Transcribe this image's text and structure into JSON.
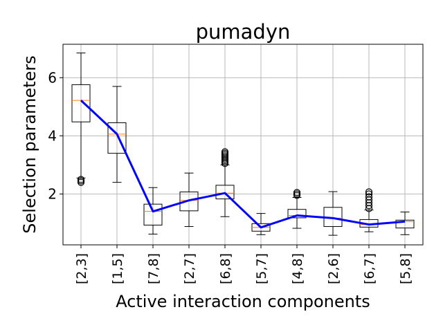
{
  "chart_data": {
    "type": "box",
    "title": "pumadyn",
    "xlabel": "Active interaction components",
    "ylabel": "Selection parameters",
    "ylim": [
      0.25,
      7.15
    ],
    "yticks": [
      2,
      4,
      6
    ],
    "grid": true,
    "categories": [
      "[2,3]",
      "[1,5]",
      "[7,8]",
      "[2,7]",
      "[6,8]",
      "[5,7]",
      "[4,8]",
      "[2,6]",
      "[6,7]",
      "[5,8]"
    ],
    "boxes": [
      {
        "whislo": 2.55,
        "q1": 4.48,
        "med": 5.22,
        "q3": 5.76,
        "whishi": 6.85,
        "fliers": [
          2.4,
          2.45,
          2.5
        ]
      },
      {
        "whislo": 2.4,
        "q1": 3.4,
        "med": 4.06,
        "q3": 4.45,
        "whishi": 5.7,
        "fliers": []
      },
      {
        "whislo": 0.62,
        "q1": 0.93,
        "med": 1.4,
        "q3": 1.65,
        "whishi": 2.22,
        "fliers": []
      },
      {
        "whislo": 0.88,
        "q1": 1.42,
        "med": 1.78,
        "q3": 2.07,
        "whishi": 2.72,
        "fliers": []
      },
      {
        "whislo": 1.22,
        "q1": 1.83,
        "med": 2.03,
        "q3": 2.3,
        "whishi": 3.0,
        "fliers": [
          3.05,
          3.1,
          3.15,
          3.2,
          3.25,
          3.3,
          3.35,
          3.4,
          3.45
        ]
      },
      {
        "whislo": 0.6,
        "q1": 0.72,
        "med": 0.85,
        "q3": 0.98,
        "whishi": 1.33,
        "fliers": []
      },
      {
        "whislo": 0.82,
        "q1": 1.18,
        "med": 1.26,
        "q3": 1.47,
        "whishi": 1.88,
        "fliers": [
          1.95,
          2.0,
          2.05
        ]
      },
      {
        "whislo": 0.58,
        "q1": 0.88,
        "med": 1.17,
        "q3": 1.54,
        "whishi": 2.08,
        "fliers": []
      },
      {
        "whislo": 0.7,
        "q1": 0.86,
        "med": 0.95,
        "q3": 1.12,
        "whishi": 1.45,
        "fliers": [
          1.5,
          1.6,
          1.7,
          1.8,
          1.9,
          2.0,
          2.07
        ]
      },
      {
        "whislo": 0.6,
        "q1": 0.83,
        "med": 1.05,
        "q3": 1.1,
        "whishi": 1.38,
        "fliers": []
      }
    ],
    "line": {
      "values": [
        5.22,
        4.06,
        1.4,
        1.78,
        2.03,
        0.85,
        1.26,
        1.17,
        0.95,
        1.05
      ]
    },
    "colors": {
      "box": "#000000",
      "median": "#ff7f0e",
      "line": "#0000ff",
      "grid": "#b0b0b0"
    }
  }
}
